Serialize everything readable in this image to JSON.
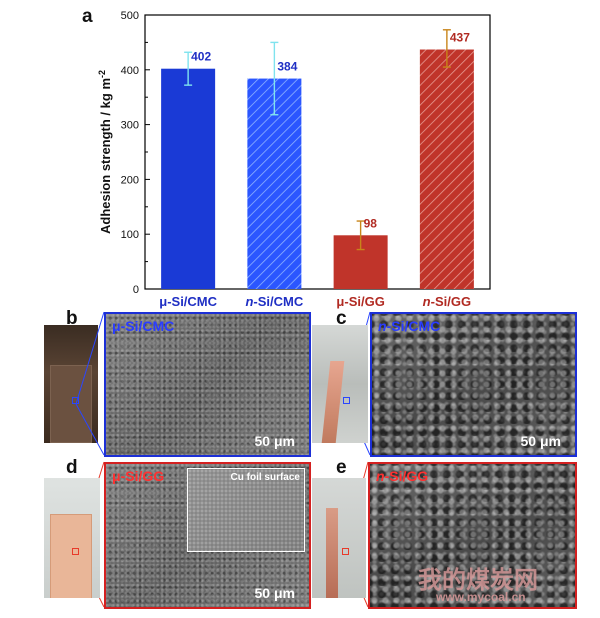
{
  "chart_data": {
    "type": "bar",
    "panel_label": "a",
    "categories": [
      "μ-Si/CMC",
      "n-Si/CMC",
      "μ-Si/GG",
      "n-Si/GG"
    ],
    "category_parts": [
      {
        "prefix": "μ",
        "suffix": "-Si/CMC"
      },
      {
        "prefix": "n",
        "suffix": "-Si/CMC"
      },
      {
        "prefix": "μ",
        "suffix": "-Si/GG"
      },
      {
        "prefix": "n",
        "suffix": "-Si/GG"
      }
    ],
    "values": [
      402,
      384,
      98,
      437
    ],
    "error_low": [
      372,
      318,
      72,
      405
    ],
    "error_high": [
      432,
      450,
      124,
      473
    ],
    "data_labels": [
      "402",
      "384",
      "98",
      "437"
    ],
    "ylabel": "Adhesion strength / kg m",
    "ylabel_superscript": "-2",
    "ylim": [
      0,
      500
    ],
    "yticks": [
      "0",
      "100",
      "200",
      "300",
      "400",
      "500"
    ],
    "grid": false,
    "colors": {
      "cmc": "#1a3ad6",
      "gg": "#c0342a",
      "cmc_error": "#7fe3ee",
      "gg_error": "#c8851a",
      "cmc_label": "#1f2fc4",
      "gg_label": "#b12a22"
    },
    "hatched": [
      false,
      true,
      false,
      true
    ]
  },
  "panels": {
    "b": {
      "letter": "b",
      "prefix": "μ",
      "suffix": "-Si/CMC",
      "scale": "50 μm"
    },
    "c": {
      "letter": "c",
      "prefix": "n",
      "suffix": "-Si/CMC",
      "scale": "50 μm"
    },
    "d": {
      "letter": "d",
      "prefix": "μ",
      "suffix": "-Si/GG",
      "scale": "50 μm",
      "inset": "Cu foil surface"
    },
    "e": {
      "letter": "e",
      "prefix": "n",
      "suffix": "-Si/GG"
    }
  },
  "watermark": {
    "text": "我的煤炭网",
    "url": "www.mycoal.cn"
  }
}
